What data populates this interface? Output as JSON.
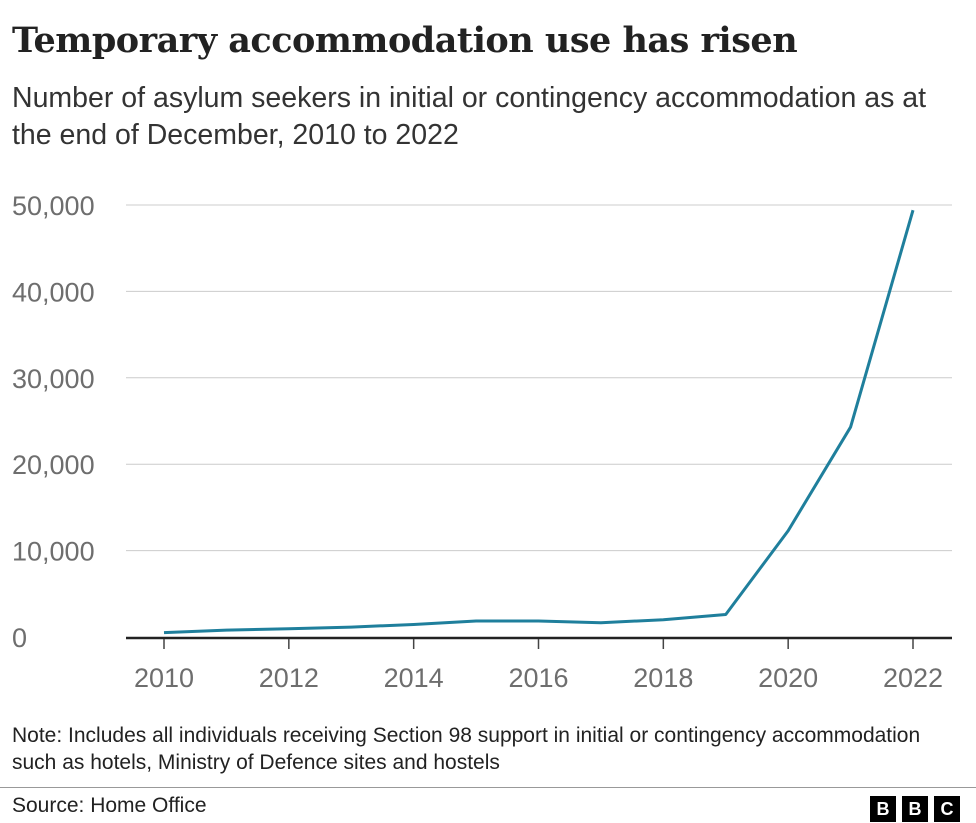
{
  "chart_data": {
    "type": "line",
    "title": "Temporary accommodation use has risen",
    "subtitle": "Number of asylum seekers in initial or contingency accommodation as at the end of December, 2010 to 2022",
    "x": [
      2010,
      2011,
      2012,
      2013,
      2014,
      2015,
      2016,
      2017,
      2018,
      2019,
      2020,
      2021,
      2022
    ],
    "values": [
      500,
      800,
      950,
      1150,
      1450,
      1850,
      1850,
      1650,
      2000,
      2600,
      12300,
      24300,
      49400
    ],
    "xticks": [
      "2010",
      "2012",
      "2014",
      "2016",
      "2018",
      "2020",
      "2022"
    ],
    "yticks": [
      "0",
      "10,000",
      "20,000",
      "30,000",
      "40,000",
      "50,000"
    ],
    "xlim": [
      2010,
      2022
    ],
    "ylim": [
      0,
      50000
    ],
    "grid": true,
    "line_color": "#1f7f9c",
    "note": "Note: Includes all individuals receiving Section 98 support in initial or contingency accommodation such as hotels, Ministry of Defence sites and hostels",
    "source": "Source: Home Office",
    "logo": "BBC"
  }
}
